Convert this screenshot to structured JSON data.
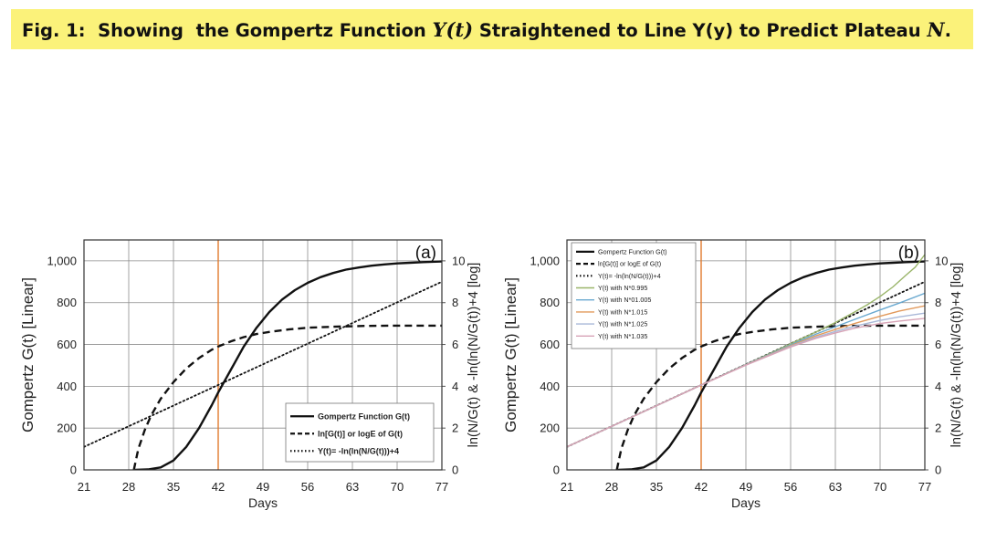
{
  "caption": {
    "fig": "Fig. 1",
    "colon": ":",
    "t1": "  Showing  the Gompertz Function ",
    "m1": "Y(t)",
    "t2": " Straightened to Line Y(y) to Predict Plateau ",
    "m2": "N",
    "t3": ".",
    "color": "#fbf27a"
  },
  "chart_data": [
    {
      "panel_label": "(a)",
      "type": "line",
      "xlabel": "Days",
      "ylabel": "Gompertz G(t) [Linear]",
      "y2label": "ln(N/G(t) & -ln(ln(N/G(t))+4 [log]",
      "xlim": [
        21,
        77
      ],
      "ylim": [
        0,
        1100
      ],
      "y2lim": [
        0,
        11
      ],
      "x_ticks": [
        "21",
        "28",
        "35",
        "42",
        "49",
        "56",
        "63",
        "70",
        "77"
      ],
      "y_ticks": [
        "0",
        "200",
        "400",
        "600",
        "800",
        "1,000"
      ],
      "y2_ticks": [
        "0",
        "2",
        "4",
        "6",
        "8",
        "10"
      ],
      "grid": true,
      "vline": {
        "x": 42,
        "color": "#e07a2e"
      },
      "legend_position": "bottom-right",
      "series": [
        {
          "name": "Gompertz Function G(t)",
          "axis": "left",
          "style": "solid",
          "color": "#111111",
          "x": [
            29,
            31,
            33,
            35,
            37,
            39,
            41,
            42,
            44,
            46,
            48,
            50,
            52,
            54,
            56,
            58,
            60,
            62,
            64,
            66,
            68,
            70,
            72,
            74,
            77
          ],
          "y": [
            0,
            2,
            12,
            45,
            110,
            200,
            310,
            370,
            480,
            590,
            680,
            755,
            815,
            860,
            895,
            922,
            942,
            958,
            968,
            977,
            983,
            988,
            991,
            994,
            997
          ]
        },
        {
          "name": "ln[G(t)] or logE of G(t)",
          "axis": "right",
          "style": "dashed",
          "color": "#111111",
          "x": [
            28.8,
            29.5,
            30.5,
            31.5,
            33,
            35,
            37,
            39,
            41,
            42,
            44,
            46,
            48,
            50,
            53,
            56,
            60,
            65,
            70,
            77
          ],
          "y": [
            0,
            1.0,
            1.9,
            2.6,
            3.4,
            4.2,
            4.85,
            5.35,
            5.75,
            5.9,
            6.15,
            6.35,
            6.5,
            6.6,
            6.72,
            6.8,
            6.85,
            6.89,
            6.9,
            6.9
          ]
        },
        {
          "name": "Y(t)= -ln(ln(N/G(t)))+4",
          "axis": "right",
          "style": "dotted",
          "color": "#111111",
          "x": [
            21,
            77
          ],
          "y": [
            1.1,
            9.0
          ]
        }
      ]
    },
    {
      "panel_label": "(b)",
      "type": "line",
      "xlabel": "Days",
      "ylabel": "Gompertz G(t) [Linear]",
      "y2label": "ln(N/G(t) & -ln(ln(N/G(t))+4 [log]",
      "xlim": [
        21,
        77
      ],
      "ylim": [
        0,
        1100
      ],
      "y2lim": [
        0,
        11
      ],
      "x_ticks": [
        "21",
        "28",
        "35",
        "42",
        "49",
        "56",
        "63",
        "70",
        "77"
      ],
      "y_ticks": [
        "0",
        "200",
        "400",
        "600",
        "800",
        "1,000"
      ],
      "y2_ticks": [
        "0",
        "2",
        "4",
        "6",
        "8",
        "10"
      ],
      "grid": true,
      "vline": {
        "x": 42,
        "color": "#e07a2e"
      },
      "legend_position": "top-left",
      "series": [
        {
          "name": "Gompertz Function G(t)",
          "axis": "left",
          "style": "solid",
          "color": "#111111",
          "x": [
            29,
            31,
            33,
            35,
            37,
            39,
            41,
            42,
            44,
            46,
            48,
            50,
            52,
            54,
            56,
            58,
            60,
            62,
            64,
            66,
            68,
            70,
            72,
            74,
            77
          ],
          "y": [
            0,
            2,
            12,
            45,
            110,
            200,
            310,
            370,
            480,
            590,
            680,
            755,
            815,
            860,
            895,
            922,
            942,
            958,
            968,
            977,
            983,
            988,
            991,
            994,
            997
          ]
        },
        {
          "name": "ln[G(t)] or logE of G(t)",
          "axis": "right",
          "style": "dashed",
          "color": "#111111",
          "x": [
            28.8,
            29.5,
            30.5,
            31.5,
            33,
            35,
            37,
            39,
            41,
            42,
            44,
            46,
            48,
            50,
            53,
            56,
            60,
            65,
            70,
            77
          ],
          "y": [
            0,
            1.0,
            1.9,
            2.6,
            3.4,
            4.2,
            4.85,
            5.35,
            5.75,
            5.9,
            6.15,
            6.35,
            6.5,
            6.6,
            6.72,
            6.8,
            6.85,
            6.89,
            6.9,
            6.9
          ]
        },
        {
          "name": "Y(t)= -ln(ln(N/G(t)))+4",
          "axis": "right",
          "style": "dotted",
          "color": "#111111",
          "x": [
            21,
            77
          ],
          "y": [
            1.1,
            9.0
          ]
        },
        {
          "name": "Y(t) with N*0.995",
          "axis": "right",
          "style": "solid",
          "color": "#9ab56a",
          "x": [
            21,
            28,
            35,
            42,
            49,
            56,
            60,
            63,
            66,
            68,
            70,
            72,
            74,
            75.5,
            77
          ],
          "y": [
            1.1,
            2.08,
            3.07,
            4.06,
            5.04,
            6.03,
            6.6,
            7.05,
            7.55,
            7.9,
            8.3,
            8.75,
            9.3,
            9.7,
            10.3
          ]
        },
        {
          "name": "Y(t) with N*01.005",
          "axis": "right",
          "style": "solid",
          "color": "#6aa9d0",
          "x": [
            21,
            28,
            35,
            42,
            49,
            56,
            60,
            63,
            66,
            70,
            73,
            77
          ],
          "y": [
            1.1,
            2.08,
            3.07,
            4.06,
            5.04,
            5.98,
            6.5,
            6.85,
            7.2,
            7.65,
            7.98,
            8.45
          ]
        },
        {
          "name": "Y(t) with N*1.015",
          "axis": "right",
          "style": "solid",
          "color": "#e29a5c",
          "x": [
            21,
            28,
            35,
            42,
            49,
            56,
            60,
            63,
            66,
            70,
            73,
            77
          ],
          "y": [
            1.1,
            2.08,
            3.07,
            4.06,
            5.03,
            5.94,
            6.42,
            6.72,
            7.0,
            7.35,
            7.6,
            7.85
          ]
        },
        {
          "name": "Y(t) with N*1.025",
          "axis": "right",
          "style": "solid",
          "color": "#a9b8d8",
          "x": [
            21,
            28,
            35,
            42,
            49,
            56,
            60,
            63,
            66,
            70,
            73,
            77
          ],
          "y": [
            1.1,
            2.08,
            3.07,
            4.06,
            5.02,
            5.91,
            6.35,
            6.62,
            6.87,
            7.15,
            7.32,
            7.5
          ]
        },
        {
          "name": "Y(t) with N*1.035",
          "axis": "right",
          "style": "solid",
          "color": "#d7a3b6",
          "x": [
            21,
            28,
            35,
            42,
            49,
            56,
            60,
            63,
            66,
            70,
            73,
            77
          ],
          "y": [
            1.1,
            2.08,
            3.07,
            4.06,
            5.01,
            5.88,
            6.3,
            6.55,
            6.78,
            7.0,
            7.12,
            7.25
          ]
        }
      ]
    }
  ]
}
